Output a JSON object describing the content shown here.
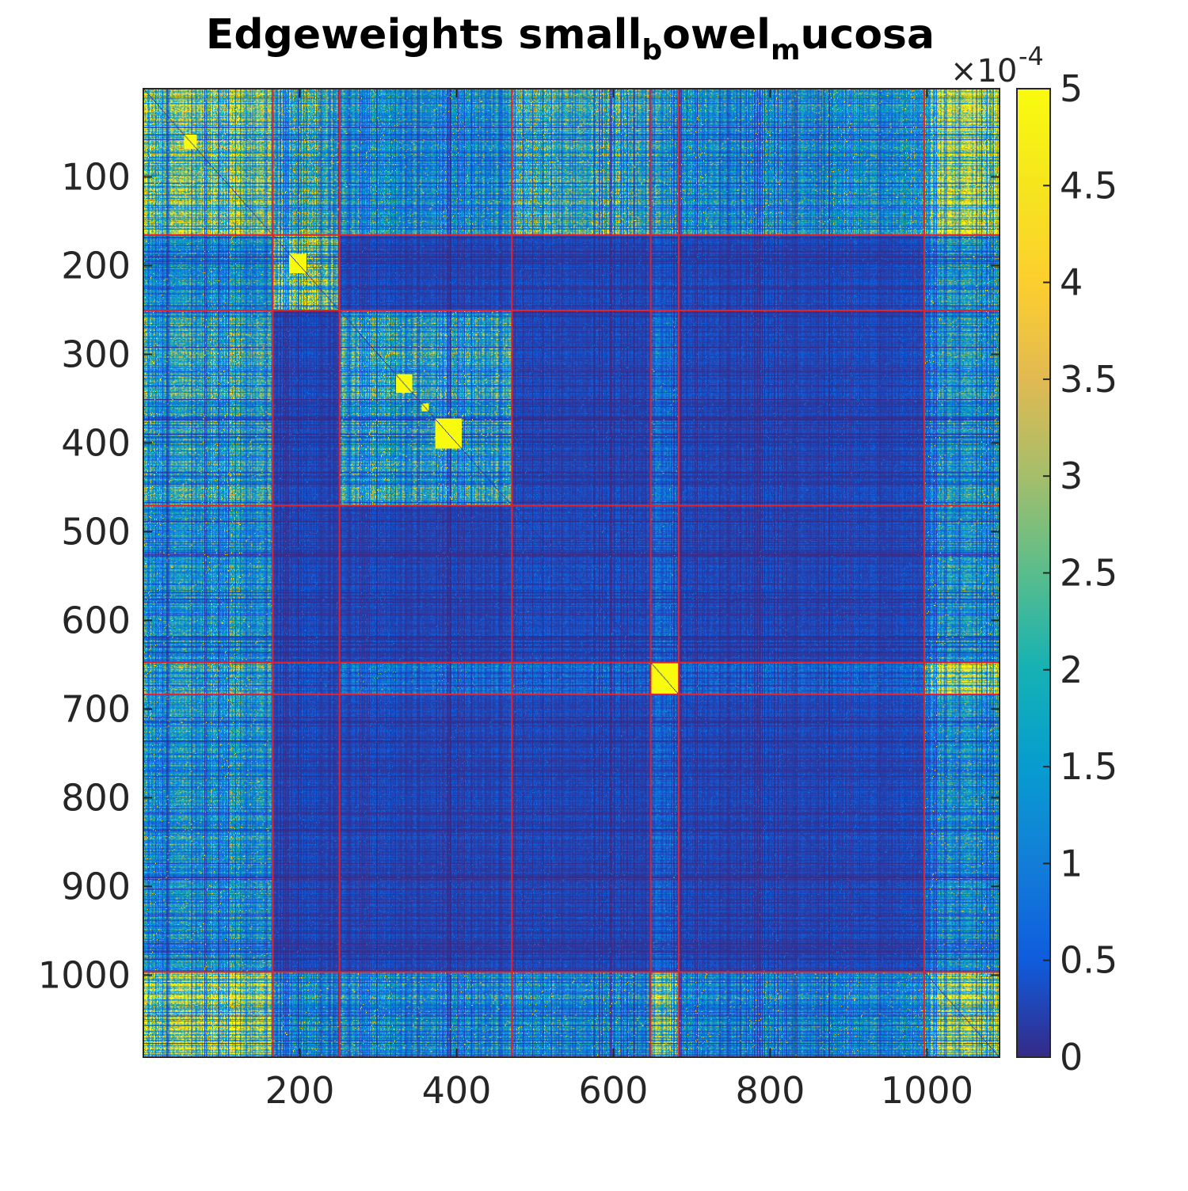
{
  "chart_data": {
    "type": "heatmap",
    "title": "Edgeweights small_bowel_mucosa",
    "title_parts": [
      {
        "text": "Edgeweights small",
        "sub": false
      },
      {
        "text": "b",
        "sub": true
      },
      {
        "text": "owel",
        "sub": false
      },
      {
        "text": "m",
        "sub": true
      },
      {
        "text": "ucosa",
        "sub": false
      }
    ],
    "xlabel": "",
    "ylabel": "",
    "n": 1092,
    "xlim": [
      0.5,
      1092.5
    ],
    "ylim": [
      0.5,
      1092.5
    ],
    "y_reversed": true,
    "xticks": [
      200,
      400,
      600,
      800,
      1000
    ],
    "yticks": [
      100,
      200,
      300,
      400,
      500,
      600,
      700,
      800,
      900,
      1000
    ],
    "colorbar": {
      "colormap": "parula",
      "clim": [
        0,
        5
      ],
      "ticks": [
        0,
        0.5,
        1,
        1.5,
        2,
        2.5,
        3,
        3.5,
        4,
        4.5,
        5
      ],
      "tick_labels": [
        "0",
        "0.5",
        "1",
        "1.5",
        "2",
        "2.5",
        "3",
        "3.5",
        "4",
        "4.5",
        "5"
      ],
      "exponent_label": "×10",
      "exponent": "-4"
    },
    "cluster_boundaries": [
      165,
      250,
      470,
      647,
      683,
      996
    ],
    "boundary_color": "#e3232b",
    "block_mean_weights": [
      [
        4.0,
        3.0,
        2.0,
        3.0,
        2.5,
        2.0,
        4.8
      ],
      [
        1.8,
        4.0,
        0.4,
        0.4,
        0.6,
        0.4,
        2.0
      ],
      [
        2.5,
        0.4,
        2.5,
        0.4,
        1.2,
        0.4,
        2.0
      ],
      [
        2.0,
        0.4,
        0.4,
        0.5,
        1.0,
        0.4,
        2.0
      ],
      [
        2.5,
        0.6,
        1.2,
        1.0,
        5.0,
        0.9,
        4.8
      ],
      [
        2.0,
        0.4,
        0.4,
        0.4,
        0.9,
        0.4,
        1.8
      ],
      [
        4.8,
        2.0,
        2.0,
        2.0,
        4.8,
        1.8,
        4.5
      ]
    ],
    "dense_blocks": [
      {
        "start": 52,
        "end": 68,
        "value": 5
      },
      {
        "start": 186,
        "end": 208,
        "value": 5
      },
      {
        "start": 322,
        "end": 343,
        "value": 5
      },
      {
        "start": 355,
        "end": 364,
        "value": 5
      },
      {
        "start": 372,
        "end": 406,
        "value": 5
      },
      {
        "start": 647,
        "end": 683,
        "value": 5
      }
    ],
    "colors": {
      "background": "#352a87",
      "high": "#f9fb0e"
    }
  }
}
